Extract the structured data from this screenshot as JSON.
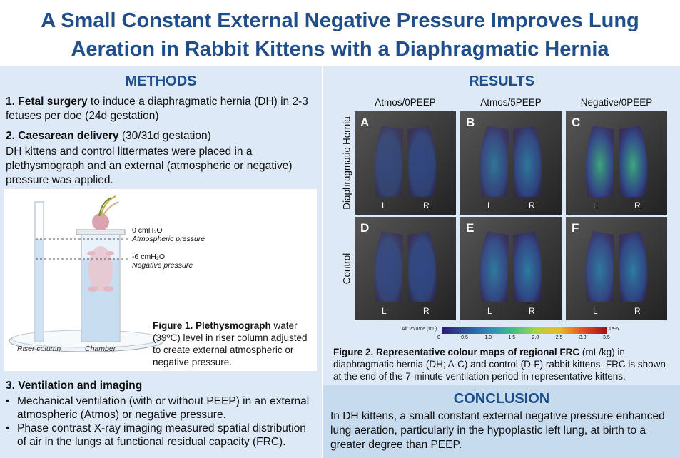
{
  "title": {
    "line1": "A Small Constant External Negative Pressure Improves Lung",
    "line2": "Aeration in Rabbit Kittens with a Diaphragmatic Hernia"
  },
  "methods": {
    "heading": "METHODS",
    "item1_bold": "1. Fetal surgery",
    "item1_rest": " to induce a diaphragmatic hernia (DH) in 2-3 fetuses per doe (24d gestation)",
    "item2_bold": "2. Caesarean delivery",
    "item2_rest": " (30/31d gestation)",
    "item2_text": "DH kittens and control littermates were placed in a plethysmograph and an external (atmospheric or negative) pressure was applied.",
    "figure": {
      "label_0": "0 cmH₂O",
      "label_0_sub": "Atmospheric pressure",
      "label_neg": "-6 cmH₂O",
      "label_neg_sub": "Negative pressure",
      "riser_label": "Riser column",
      "chamber_label": "Chamber",
      "caption_bold": "Figure 1. Plethysmograph",
      "caption_rest": " water (39ºC) level in riser column adjusted to create external atmospheric or negative pressure."
    },
    "item3_heading": "3. Ventilation and imaging",
    "bullets": [
      "Mechanical ventilation (with or without PEEP) in an external atmospheric (Atmos) or negative pressure.",
      "Phase contrast X-ray imaging measured spatial distribution of air in the lungs at functional residual capacity (FRC)."
    ]
  },
  "results": {
    "heading": "RESULTS",
    "columns": [
      "Atmos/0PEEP",
      "Atmos/5PEEP",
      "Negative/0PEEP"
    ],
    "rows": [
      "Diaphragmatic Hernia",
      "Control"
    ],
    "panels": [
      {
        "letter": "A",
        "level": 0.15
      },
      {
        "letter": "B",
        "level": 0.45
      },
      {
        "letter": "C",
        "level": 0.65
      },
      {
        "letter": "D",
        "level": 0.3
      },
      {
        "letter": "E",
        "level": 0.6
      },
      {
        "letter": "F",
        "level": 0.6
      }
    ],
    "left_label": "L",
    "right_label": "R",
    "colorbar": {
      "label": "Air volume (mL)",
      "ticks": [
        "0",
        "0.5",
        "1.0",
        "1.5",
        "2.0",
        "2.5",
        "3.0",
        "3.5"
      ],
      "multiplier": "1e-6"
    },
    "caption_bold": "Figure 2. Representative colour maps of regional FRC",
    "caption_rest": " (mL/kg) in diaphragmatic hernia (DH; A-C) and control (D-F) rabbit kittens. FRC is shown at the end of the 7-minute ventilation period in representative kittens."
  },
  "conclusion": {
    "heading": "CONCLUSION",
    "text": "In DH kittens, a small constant external negative pressure enhanced lung aeration, particularly in the hypoplastic left lung, at birth to a greater degree than PEEP."
  },
  "colors": {
    "heading": "#1f4e8c",
    "panel_bg": "#dde9f6",
    "conclusion_bg": "#c7dbef"
  }
}
